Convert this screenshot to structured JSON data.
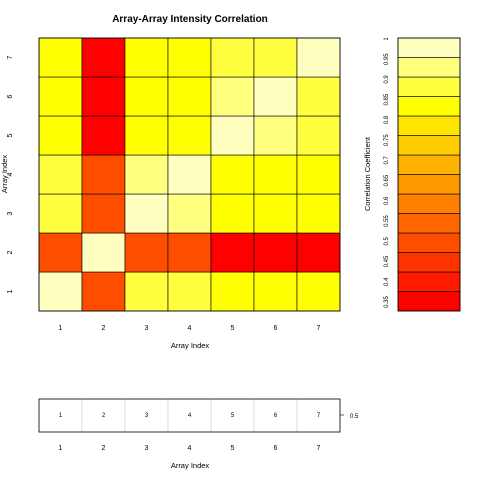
{
  "chart_data": [
    {
      "type": "heatmap",
      "title": "Array-Array Intensity Correlation",
      "xlabel": "Array Index",
      "ylabel": "Array Index",
      "x_ticks": [
        "1",
        "2",
        "3",
        "4",
        "5",
        "6",
        "7"
      ],
      "y_ticks": [
        "1",
        "2",
        "3",
        "4",
        "5",
        "6",
        "7"
      ],
      "grid": true,
      "values": [
        [
          1.0,
          0.5,
          0.9,
          0.88,
          0.83,
          0.83,
          0.83
        ],
        [
          0.5,
          1.0,
          0.5,
          0.5,
          0.38,
          0.38,
          0.38
        ],
        [
          0.9,
          0.5,
          1.0,
          0.92,
          0.85,
          0.85,
          0.85
        ],
        [
          0.88,
          0.5,
          0.92,
          1.0,
          0.85,
          0.85,
          0.85
        ],
        [
          0.83,
          0.38,
          0.85,
          0.85,
          1.0,
          0.92,
          0.9
        ],
        [
          0.83,
          0.38,
          0.85,
          0.85,
          0.92,
          1.0,
          0.9
        ],
        [
          0.83,
          0.38,
          0.85,
          0.85,
          0.9,
          0.9,
          1.0
        ]
      ]
    },
    {
      "type": "heatmap",
      "title": "",
      "ylabel": "Correlation Coefficient",
      "ticks": [
        "0.35",
        "0.4",
        "0.45",
        "0.5",
        "0.55",
        "0.6",
        "0.65",
        "0.7",
        "0.75",
        "0.8",
        "0.85",
        "0.9",
        "0.95",
        "1"
      ],
      "colors": [
        "#FF0000",
        "#FF1A00",
        "#FF3300",
        "#FF4D00",
        "#FF6600",
        "#FF8000",
        "#FF9900",
        "#FFB200",
        "#FFCC00",
        "#FFE500",
        "#FFFF00",
        "#FFFF40",
        "#FFFF80",
        "#FFFFBF"
      ],
      "range": [
        0.35,
        1.0
      ]
    },
    {
      "type": "heatmap",
      "title": "",
      "xlabel": "Array Index",
      "x_ticks": [
        "1",
        "2",
        "3",
        "4",
        "5",
        "6",
        "7"
      ],
      "cell_labels": [
        "1",
        "2",
        "3",
        "4",
        "5",
        "6",
        "7"
      ],
      "side_label": "0.5"
    }
  ]
}
